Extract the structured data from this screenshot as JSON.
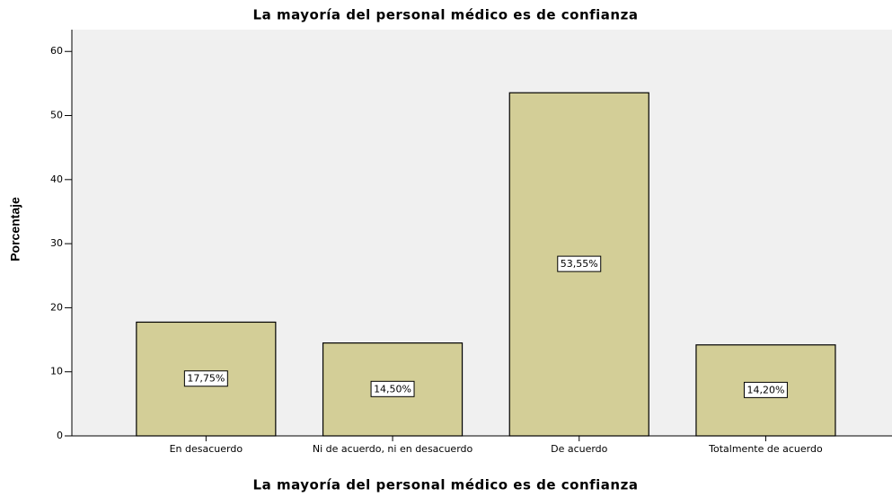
{
  "chart_data": {
    "type": "bar",
    "title": "La mayoría del personal médico es de confianza",
    "x_label": "La mayoría del personal médico es de confianza",
    "y_label": "Porcentaje",
    "categories": [
      "En desacuerdo",
      "Ni de acuerdo, ni en desacuerdo",
      "De acuerdo",
      "Totalmente de acuerdo"
    ],
    "values": [
      17.75,
      14.5,
      53.55,
      14.2
    ],
    "value_labels": [
      "17,75%",
      "14,50%",
      "53,55%",
      "14,20%"
    ],
    "color": "#d3ce97",
    "ylim": [
      0,
      63.4
    ],
    "yticks": [
      0,
      10,
      20,
      30,
      40,
      50,
      60
    ],
    "grid": false
  }
}
